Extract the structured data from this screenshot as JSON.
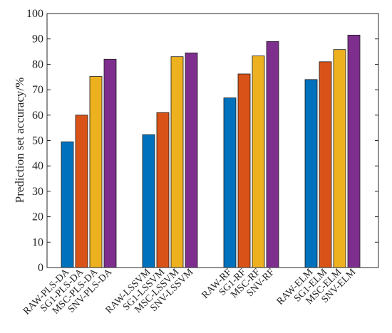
{
  "chart_data": {
    "type": "bar",
    "ylabel": "Prediction set accuracy/%",
    "xlabel": "",
    "title": "",
    "ylim": [
      0,
      100
    ],
    "yticks": [
      0,
      10,
      20,
      30,
      40,
      50,
      60,
      70,
      80,
      90,
      100
    ],
    "grid": false,
    "groups": [
      {
        "bars": [
          {
            "label": "RAW-PLS-DA",
            "value": 49.5,
            "color": "#0072BD"
          },
          {
            "label": "SG1-PLS-DA",
            "value": 60,
            "color": "#D95319"
          },
          {
            "label": "MSC-PLS-DA",
            "value": 75.2,
            "color": "#EDB120"
          },
          {
            "label": "SNV-PLS-DA",
            "value": 82,
            "color": "#7E2F8E"
          }
        ]
      },
      {
        "bars": [
          {
            "label": "RAW-LSSVM",
            "value": 52.3,
            "color": "#0072BD"
          },
          {
            "label": "SG1-LSSVM",
            "value": 61,
            "color": "#D95319"
          },
          {
            "label": "MSC-LSSVM",
            "value": 83,
            "color": "#EDB120"
          },
          {
            "label": "SNV-LSSVM",
            "value": 84.5,
            "color": "#7E2F8E"
          }
        ]
      },
      {
        "bars": [
          {
            "label": "RAW-RF",
            "value": 66.8,
            "color": "#0072BD"
          },
          {
            "label": "SG1-RF",
            "value": 76.2,
            "color": "#D95319"
          },
          {
            "label": "MSC-RF",
            "value": 83.3,
            "color": "#EDB120"
          },
          {
            "label": "SNV-RF",
            "value": 89,
            "color": "#7E2F8E"
          }
        ]
      },
      {
        "bars": [
          {
            "label": "RAW-ELM",
            "value": 74,
            "color": "#0072BD"
          },
          {
            "label": "SG1-ELM",
            "value": 81,
            "color": "#D95319"
          },
          {
            "label": "MSC-ELM",
            "value": 85.8,
            "color": "#EDB120"
          },
          {
            "label": "SNV-ELM",
            "value": 91.5,
            "color": "#7E2F8E"
          }
        ]
      }
    ]
  }
}
